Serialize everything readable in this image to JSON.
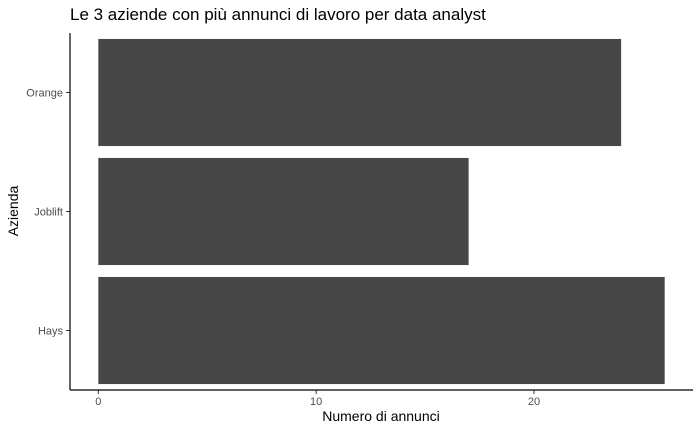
{
  "chart_data": {
    "type": "bar",
    "orientation": "horizontal",
    "title": "Le 3 aziende con più annunci di lavoro per data analyst",
    "xlabel": "Numero di annunci",
    "ylabel": "Azienda",
    "categories": [
      "Orange",
      "Joblift",
      "Hays"
    ],
    "values": [
      24,
      17,
      26
    ],
    "xlim": [
      -1.3,
      27.3
    ],
    "xticks": [
      0,
      10,
      20
    ],
    "bar_color": "#474747",
    "grid": false,
    "legend": "none"
  }
}
